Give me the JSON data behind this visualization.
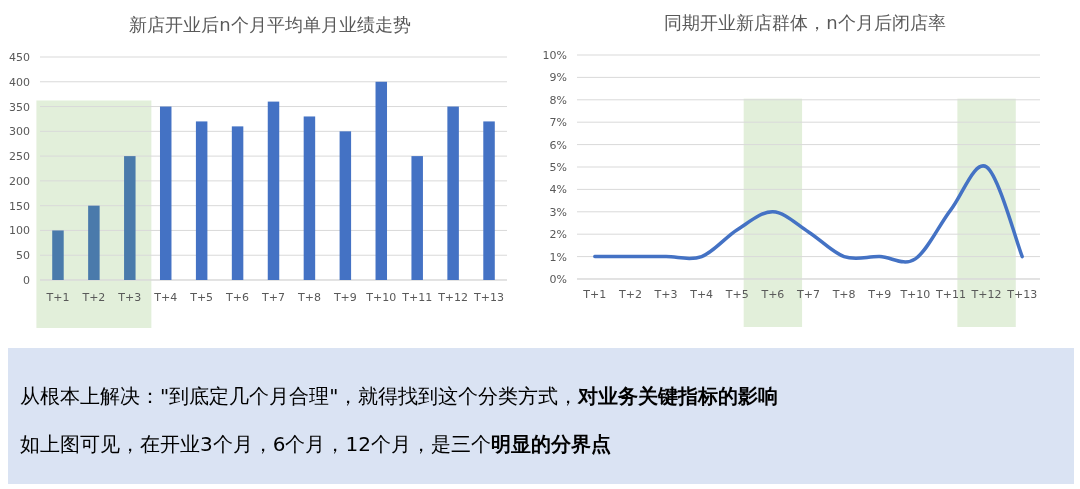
{
  "chart_data": [
    {
      "type": "bar",
      "title": "新店开业后n个月平均单月业绩走势",
      "categories": [
        "T+1",
        "T+2",
        "T+3",
        "T+4",
        "T+5",
        "T+6",
        "T+7",
        "T+8",
        "T+9",
        "T+10",
        "T+11",
        "T+12",
        "T+13"
      ],
      "values": [
        100,
        150,
        250,
        350,
        320,
        310,
        360,
        330,
        300,
        400,
        250,
        350,
        320
      ],
      "colors": [
        "#4a7aab",
        "#4a7aab",
        "#4a7aab",
        "#4472c4",
        "#4472c4",
        "#4472c4",
        "#4472c4",
        "#4472c4",
        "#4472c4",
        "#4472c4",
        "#4472c4",
        "#4472c4",
        "#4472c4"
      ],
      "ylim": [
        0,
        450
      ],
      "yticks": [
        0,
        50,
        100,
        150,
        200,
        250,
        300,
        350,
        400,
        450
      ],
      "grid": "y",
      "bands": [
        {
          "axis": "x",
          "from": "T+1",
          "to": "T+3",
          "color": "#e2efda"
        }
      ]
    },
    {
      "type": "line",
      "title": "同期开业新店群体，n个月后闭店率",
      "categories": [
        "T+1",
        "T+2",
        "T+3",
        "T+4",
        "T+5",
        "T+6",
        "T+7",
        "T+8",
        "T+9",
        "T+10",
        "T+11",
        "T+12",
        "T+13"
      ],
      "series": [
        {
          "color": "#4472c4",
          "values": [
            1,
            1,
            1,
            1,
            2.2,
            3,
            2.1,
            1,
            1,
            0.9,
            3.1,
            5,
            1
          ]
        }
      ],
      "ylim": [
        0,
        10
      ],
      "yticks": [
        {
          "value": 0,
          "label": "0%"
        },
        {
          "value": 1,
          "label": "1%"
        },
        {
          "value": 2,
          "label": "2%"
        },
        {
          "value": 3,
          "label": "3%"
        },
        {
          "value": 4,
          "label": "4%"
        },
        {
          "value": 5,
          "label": "5%"
        },
        {
          "value": 6,
          "label": "6%"
        },
        {
          "value": 7,
          "label": "7%"
        },
        {
          "value": 8,
          "label": "8%"
        },
        {
          "value": 9,
          "label": "9%"
        },
        {
          "value": 10,
          "label": "10%"
        }
      ],
      "grid": "y",
      "marker": "none",
      "bands": [
        {
          "axis": "x",
          "from": "T+5",
          "to": "T+7",
          "color": "#e2efda"
        },
        {
          "axis": "x",
          "from": "T+11",
          "to": "T+13",
          "color": "#e2efda"
        }
      ]
    },
    {
      "type": "other",
      "annotations": [
        "从根本上解决：\"到底定几个月合理\"，就得找到这个分类方式，**对业务关键指标的影响**",
        "如上图可见，在开业3个月，6个月，12个月，是三个**明显的分界点**"
      ]
    }
  ]
}
